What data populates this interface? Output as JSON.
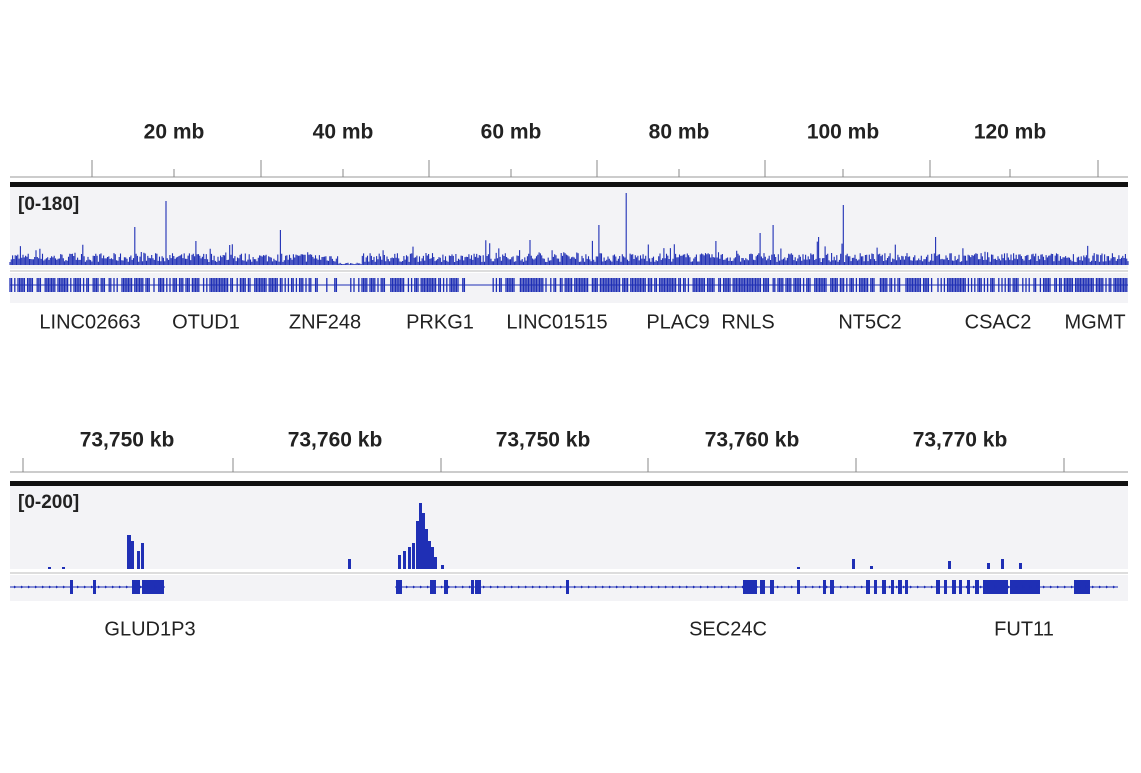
{
  "panels": [
    {
      "ruler": {
        "ticks": [
          "20 mb",
          "40 mb",
          "60 mb",
          "80 mb",
          "100 mb",
          "120 mb"
        ]
      },
      "range": "[0-180]",
      "genes": [
        "LINC02663",
        "OTUD1",
        "ZNF248",
        "PRKG1",
        "LINC01515",
        "PLAC9",
        "RNLS",
        "NT5C2",
        "CSAC2",
        "MGMT"
      ]
    },
    {
      "ruler": {
        "ticks": [
          "73,750 kb",
          "73,760 kb",
          "73,750 kb",
          "73,760 kb",
          "73,770 kb"
        ]
      },
      "range": "[0-200]",
      "genes": [
        "GLUD1P3",
        "SEC24C",
        "FUT11"
      ]
    }
  ]
}
